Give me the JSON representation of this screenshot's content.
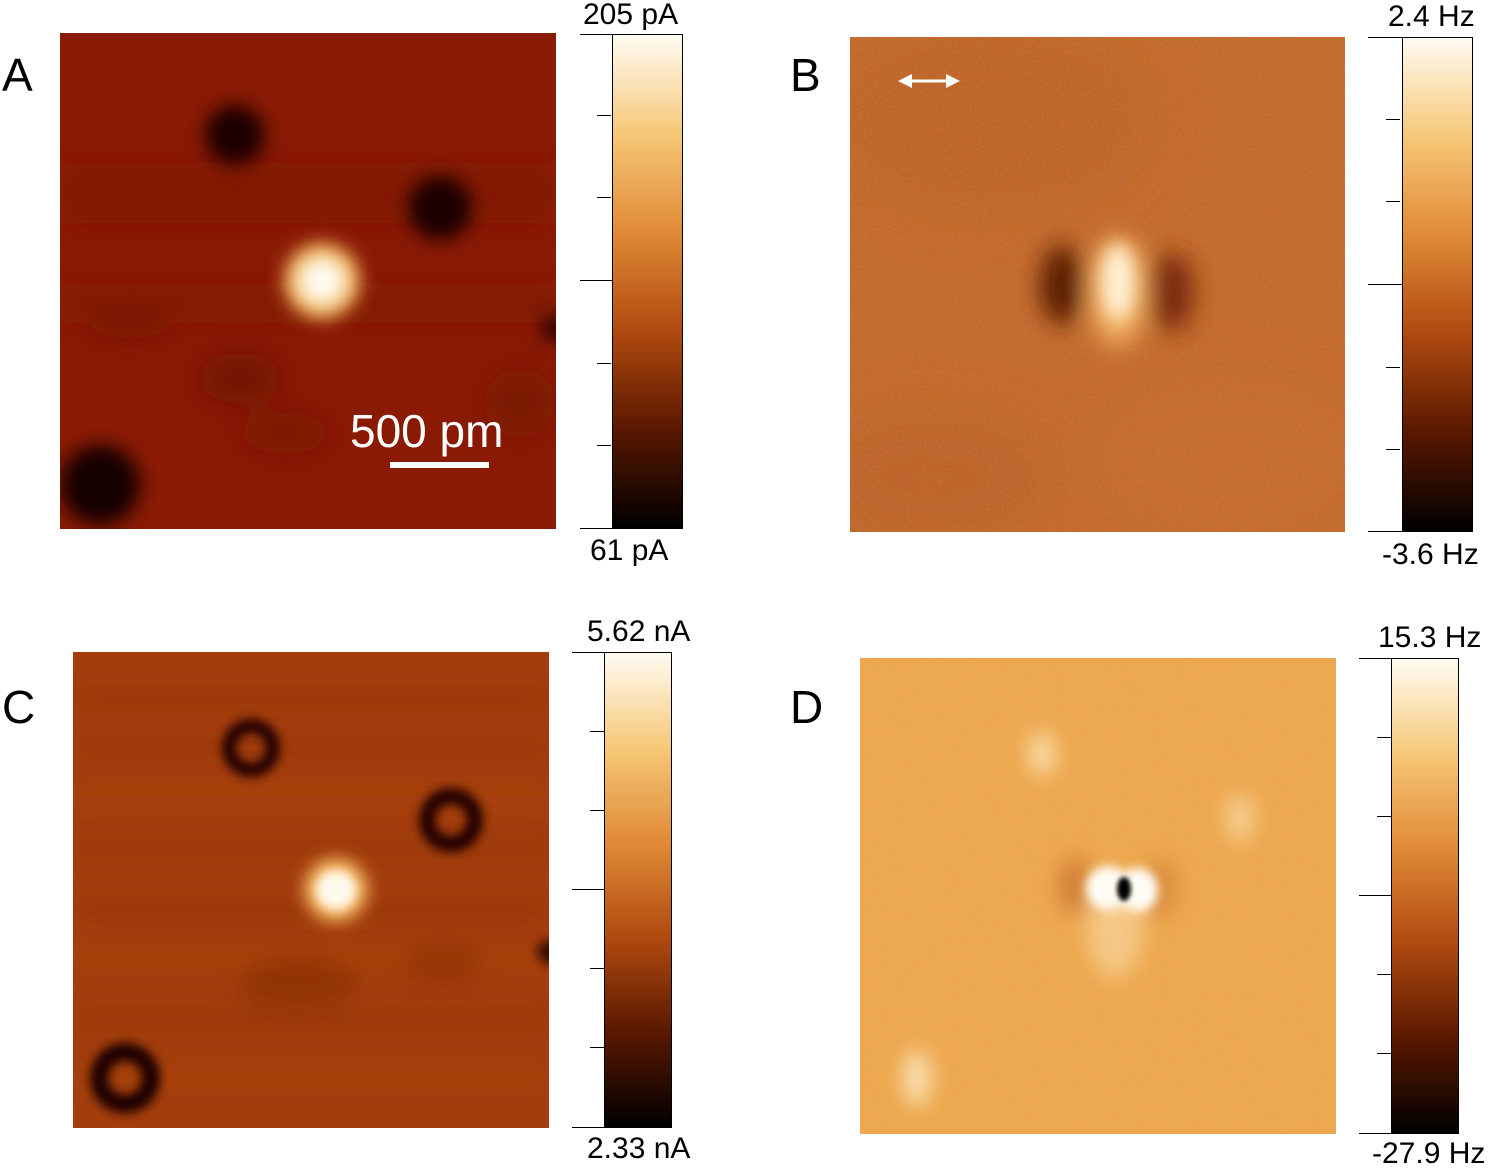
{
  "panels": {
    "a": {
      "letter": "A",
      "colorbar_max": "205 pA",
      "colorbar_min": "61 pA",
      "scale_bar": "500 pm"
    },
    "b": {
      "letter": "B",
      "colorbar_max": "2.4 Hz",
      "colorbar_min": "-3.6 Hz"
    },
    "c": {
      "letter": "C",
      "colorbar_max": "5.62 nA",
      "colorbar_min": "2.33 nA"
    },
    "d": {
      "letter": "D",
      "colorbar_max": "15.3 Hz",
      "colorbar_min": "-27.9 Hz"
    }
  },
  "colormap": [
    "#000000",
    "#5a1800",
    "#b04a10",
    "#e08a36",
    "#f6c878",
    "#fffbf2"
  ],
  "icons": {
    "direction_arrow": "double-headed-arrow-icon"
  }
}
